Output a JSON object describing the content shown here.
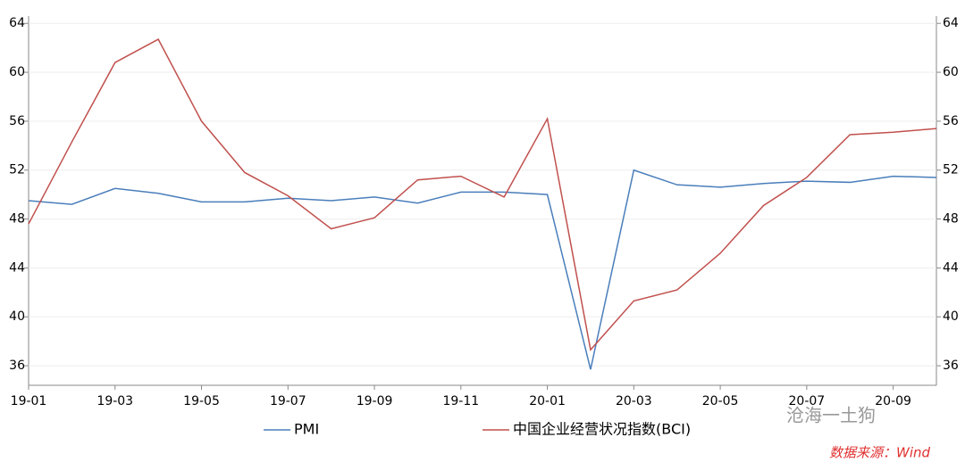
{
  "chart_data": {
    "type": "line",
    "categories": [
      "19-01",
      null,
      "19-03",
      null,
      "19-05",
      null,
      "19-07",
      null,
      "19-09",
      null,
      "19-11",
      null,
      "20-01",
      null,
      "20-03",
      null,
      "20-05",
      null,
      "20-07",
      null,
      "20-09",
      null
    ],
    "series": [
      {
        "name": "PMI",
        "color": "#4a7ebb",
        "values": [
          49.5,
          49.2,
          50.5,
          50.1,
          49.4,
          49.4,
          49.7,
          49.5,
          49.8,
          49.3,
          50.2,
          50.2,
          50.0,
          35.7,
          52.0,
          50.8,
          50.6,
          50.9,
          51.1,
          51.0,
          51.5,
          51.4
        ]
      },
      {
        "name": "中国企业经营状况指数(BCI)",
        "color": "#c0504d",
        "axis": "y2",
        "values": [
          47.6,
          54.3,
          60.8,
          62.7,
          56.0,
          51.8,
          49.9,
          47.2,
          48.1,
          51.2,
          51.5,
          49.8,
          56.2,
          37.3,
          41.3,
          42.2,
          45.2,
          49.1,
          51.4,
          54.9,
          55.1,
          55.4
        ]
      }
    ],
    "ylim": [
      34.4,
      64.6
    ],
    "yticks": [
      36,
      40,
      44,
      48,
      52,
      56,
      60,
      64
    ],
    "y2lim": [
      34.4,
      64.6
    ],
    "y2ticks": [
      36,
      40,
      44,
      48,
      52,
      56,
      60,
      64
    ],
    "grid": true,
    "annotations": [
      "沧海一土狗",
      "数据来源：Wind"
    ]
  }
}
